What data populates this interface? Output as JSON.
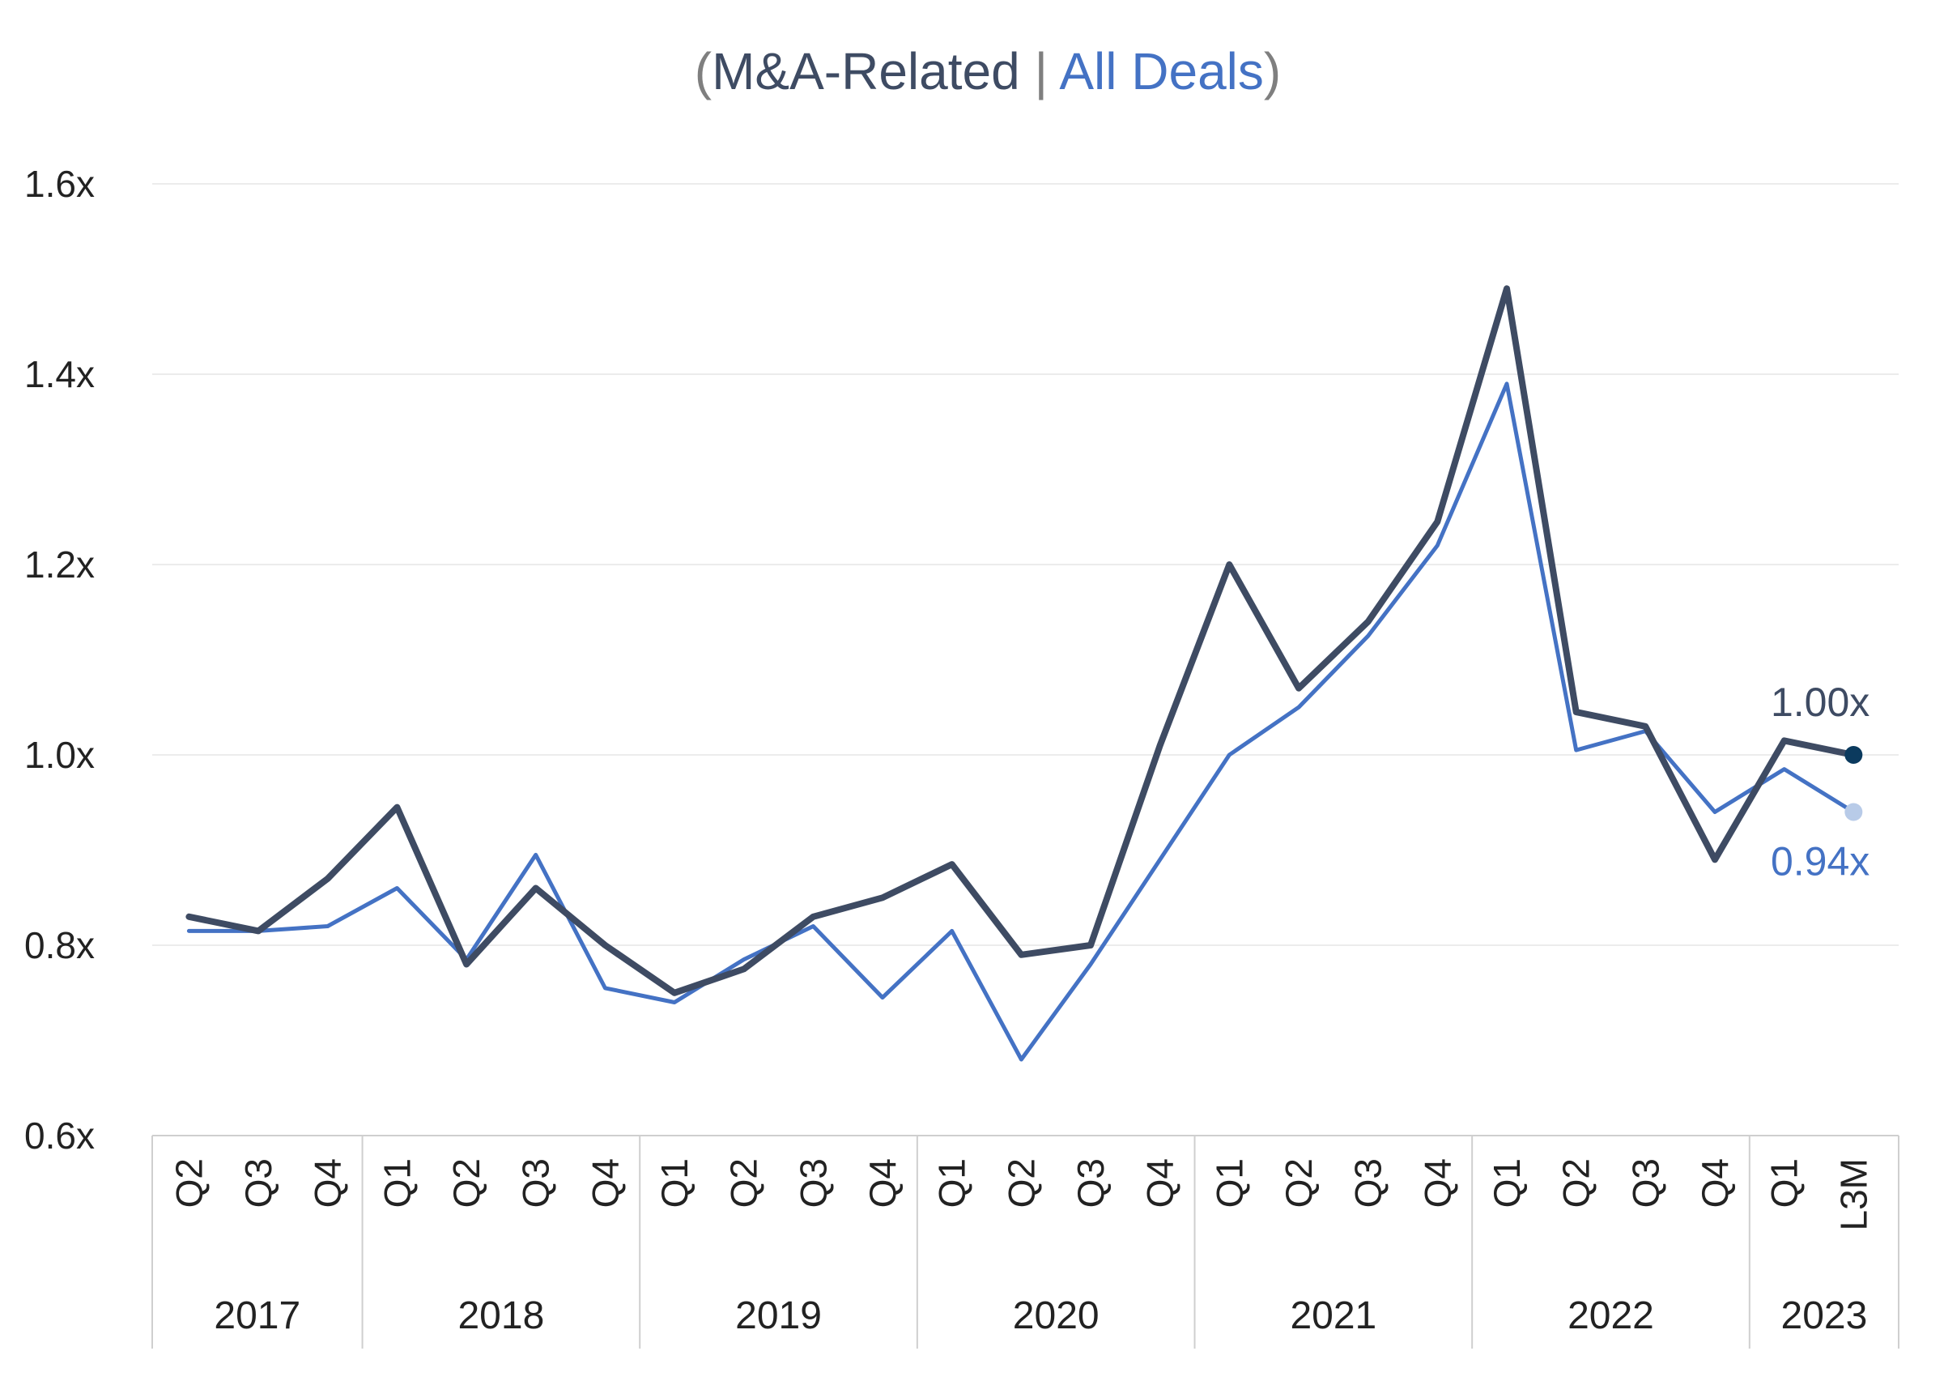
{
  "chart_data": {
    "type": "line",
    "title": {
      "open": "(",
      "series1": "M&A-Related",
      "sep": " | ",
      "series2": "All Deals",
      "close": ")"
    },
    "ylim": [
      0.6,
      1.6
    ],
    "yticks": [
      "0.6x",
      "0.8x",
      "1.0x",
      "1.2x",
      "1.4x",
      "1.6x"
    ],
    "ytick_values": [
      0.6,
      0.8,
      1.0,
      1.2,
      1.4,
      1.6
    ],
    "grid": true,
    "categories": [
      "Q2",
      "Q3",
      "Q4",
      "Q1",
      "Q2",
      "Q3",
      "Q4",
      "Q1",
      "Q2",
      "Q3",
      "Q4",
      "Q1",
      "Q2",
      "Q3",
      "Q4",
      "Q1",
      "Q2",
      "Q3",
      "Q4",
      "Q1",
      "Q2",
      "Q3",
      "Q4",
      "Q1",
      "L3M"
    ],
    "groups": [
      {
        "label": "2017",
        "count": 3
      },
      {
        "label": "2018",
        "count": 4
      },
      {
        "label": "2019",
        "count": 4
      },
      {
        "label": "2020",
        "count": 4
      },
      {
        "label": "2021",
        "count": 4
      },
      {
        "label": "2022",
        "count": 4
      },
      {
        "label": "2023",
        "count": 2
      }
    ],
    "series": [
      {
        "name": "M&A-Related",
        "color": "#3e4b63",
        "values": [
          0.83,
          0.815,
          0.87,
          0.945,
          0.78,
          0.86,
          0.8,
          0.75,
          0.775,
          0.83,
          0.85,
          0.885,
          0.79,
          0.8,
          1.01,
          1.2,
          1.07,
          1.14,
          1.245,
          1.49,
          1.045,
          1.03,
          0.89,
          1.015,
          1.0
        ],
        "end_label": "1.00x",
        "end_marker_color": "#0b3a5e"
      },
      {
        "name": "All Deals",
        "color": "#4472c4",
        "values": [
          0.815,
          0.815,
          0.82,
          0.86,
          0.785,
          0.895,
          0.755,
          0.74,
          0.785,
          0.82,
          0.745,
          0.815,
          0.68,
          0.78,
          0.89,
          1.0,
          1.05,
          1.125,
          1.22,
          1.39,
          1.005,
          1.025,
          0.94,
          0.985,
          0.94
        ],
        "end_label": "0.94x",
        "end_marker_color": "#b8cbe8"
      }
    ],
    "colors": {
      "title_paren": "#7f7f7f",
      "grid": "#ececec",
      "axis": "#cfcfcf"
    }
  }
}
